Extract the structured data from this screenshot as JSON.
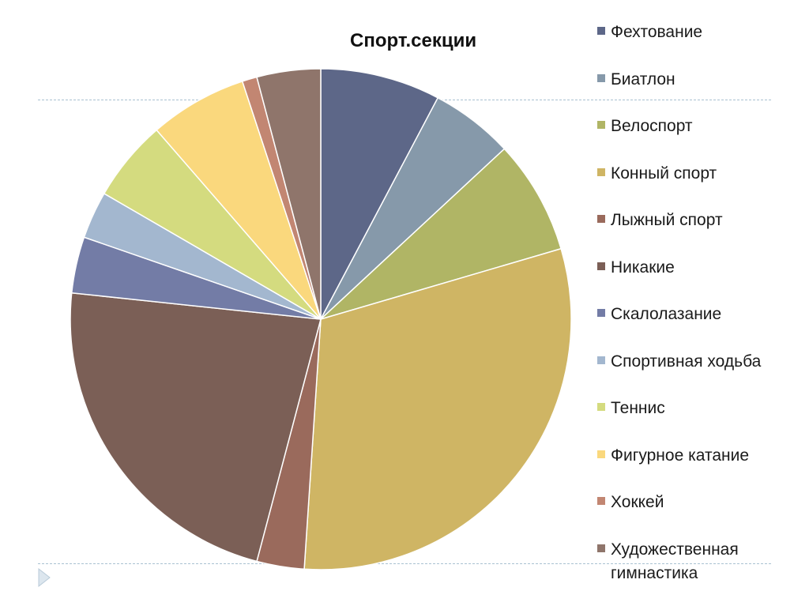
{
  "chart_data": {
    "type": "pie",
    "title": "Спорт.секции",
    "legend_position": "right",
    "slices": [
      {
        "label": "Фехтование",
        "value": 8.1,
        "color": "#5d6788"
      },
      {
        "label": "Биатлон",
        "value": 5.6,
        "color": "#8699aa"
      },
      {
        "label": "Велоспорт",
        "value": 7.7,
        "color": "#b0b565"
      },
      {
        "label": "Конный спорт",
        "value": 32.0,
        "color": "#cfb564"
      },
      {
        "label": "Лыжный спорт",
        "value": 3.2,
        "color": "#9a6a5c"
      },
      {
        "label": "Никакие",
        "value": 23.6,
        "color": "#7b5f56"
      },
      {
        "label": "Скалолазание",
        "value": 3.8,
        "color": "#737ca6"
      },
      {
        "label": "Спортивная ходьба",
        "value": 3.2,
        "color": "#a3b7cf"
      },
      {
        "label": "Теннис",
        "value": 5.5,
        "color": "#d4db7f"
      },
      {
        "label": "Фигурное катание",
        "value": 6.6,
        "color": "#fad87d"
      },
      {
        "label": "Хоккей",
        "value": 1.0,
        "color": "#c28672"
      },
      {
        "label": "Художественная гимнастика",
        "value": 4.3,
        "color": "#8f756b"
      }
    ]
  }
}
